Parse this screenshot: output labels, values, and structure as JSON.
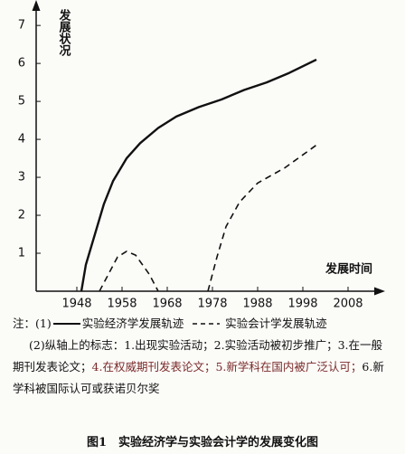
{
  "chart_data": {
    "type": "line",
    "y_label": "发展状况",
    "x_label": "发展时间",
    "xlim": [
      1939,
      2014
    ],
    "xticks": [
      1948,
      1958,
      1968,
      1978,
      1988,
      1998,
      2008
    ],
    "ylim": [
      0,
      7.48
    ],
    "yticks": [
      1,
      2,
      3,
      4,
      5,
      6,
      7
    ],
    "series": [
      {
        "name": "实验经济学发展轨迹",
        "color": "#111111",
        "style": "solid",
        "x": [
          1949,
          1950,
          1952,
          1954,
          1956,
          1959,
          1962,
          1966,
          1970,
          1975,
          1980,
          1985,
          1990,
          1995,
          2001
        ],
        "values": [
          0,
          0.7,
          1.5,
          2.3,
          2.9,
          3.5,
          3.9,
          4.3,
          4.6,
          4.85,
          5.05,
          5.3,
          5.5,
          5.75,
          6.1
        ]
      },
      {
        "name": "实验会计学发展轨迹",
        "color": "#111111",
        "style": "dashed",
        "x": [
          1953,
          1955,
          1957,
          1959,
          1961,
          1964,
          1966,
          null,
          1977,
          1979,
          1981,
          1984,
          1988,
          1994,
          2001
        ],
        "values": [
          0,
          0.45,
          0.9,
          1.05,
          0.95,
          0.45,
          0,
          null,
          0,
          0.9,
          1.7,
          2.35,
          2.85,
          3.25,
          3.85
        ]
      }
    ]
  },
  "notes": {
    "prefix": "注：(1)",
    "marks_intro": "(2)纵轴上的标志：",
    "marks": [
      "1.出现实验活动；",
      "2.实验活动被初步推广；",
      "3.在一般期刊发表论文；",
      "4.在权威期刊发表论文；",
      "5.新学科在国内被广泛认可；",
      "6.新学科被国际认可或获诺贝尔奖"
    ]
  },
  "caption": "图1　实验经济学与实验会计学的发展变化图"
}
